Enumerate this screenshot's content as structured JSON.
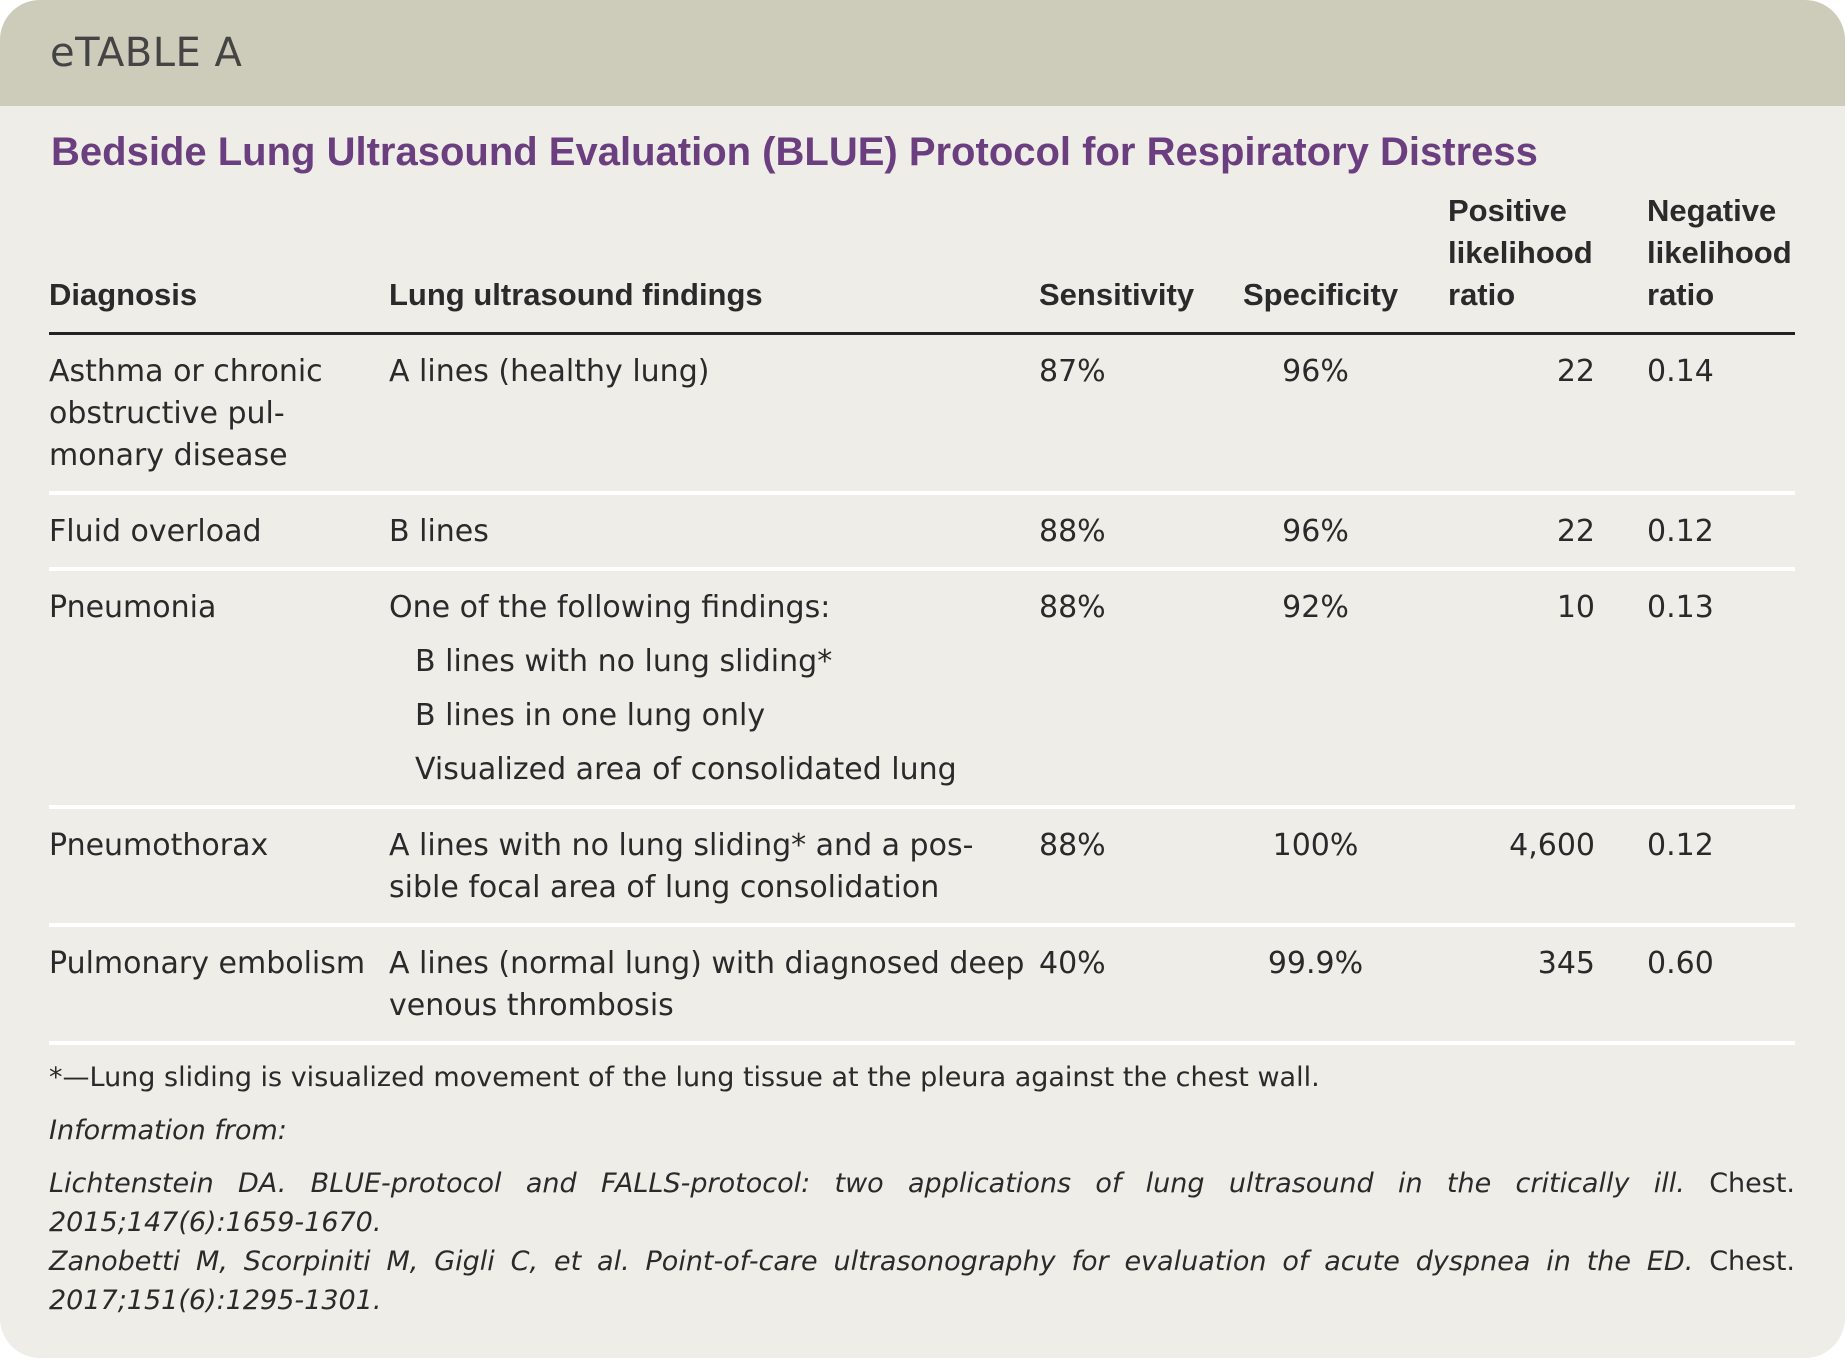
{
  "header": {
    "label": "eTABLE A",
    "title": "Bedside Lung Ultrasound Evaluation (BLUE) Protocol for Respiratory Distress"
  },
  "table": {
    "columns": [
      "Diagnosis",
      "Lung ultrasound findings",
      "Sensitivity",
      "Specificity",
      "Positive likelihood ratio",
      "Negative likelihood ratio"
    ],
    "rows": [
      {
        "diagnosis": "Asthma or chronic obstructive pul­monary disease",
        "findings": "A lines (healthy lung)",
        "sensitivity": "87%",
        "specificity": "96%",
        "positive_lr": "22",
        "negative_lr": "0.14"
      },
      {
        "diagnosis": "Fluid overload",
        "findings": "B lines",
        "sensitivity": "88%",
        "specificity": "96%",
        "positive_lr": "22",
        "negative_lr": "0.12"
      },
      {
        "diagnosis": "Pneumonia",
        "findings": "One of the following findings:",
        "findings_list": [
          "B lines with no lung sliding*",
          "B lines in one lung only",
          "Visualized area of consolidated lung"
        ],
        "sensitivity": "88%",
        "specificity": "92%",
        "positive_lr": "10",
        "negative_lr": "0.13"
      },
      {
        "diagnosis": "Pneumothorax",
        "findings": "A lines with no lung sliding* and a pos­sible focal area of lung consolidation",
        "sensitivity": "88%",
        "specificity": "100%",
        "positive_lr": "4,600",
        "negative_lr": "0.12"
      },
      {
        "diagnosis": "Pulmonary embolism",
        "findings": "A lines (normal lung) with diagnosed deep venous thrombosis",
        "sensitivity": "40%",
        "specificity": "99.9%",
        "positive_lr": "345",
        "negative_lr": "0.60"
      }
    ]
  },
  "footnote": "*—Lung sliding is visualized movement of the lung tissue at the pleura against the chest wall.",
  "sources": {
    "heading": "Information from:",
    "items": [
      {
        "reference": "Lichtenstein DA. BLUE-protocol and FALLS-protocol: two applications of lung ultrasound in the critically ill.",
        "journal": "Chest.",
        "citation": "2015;147(6):1659-1670."
      },
      {
        "reference": "Zanobetti M, Scorpiniti M, Gigli C, et al. Point-of-care ultrasonography for evaluation of acute dyspnea in the ED.",
        "journal": "Chest.",
        "citation": "2017;151(6):1295-1301."
      }
    ]
  }
}
